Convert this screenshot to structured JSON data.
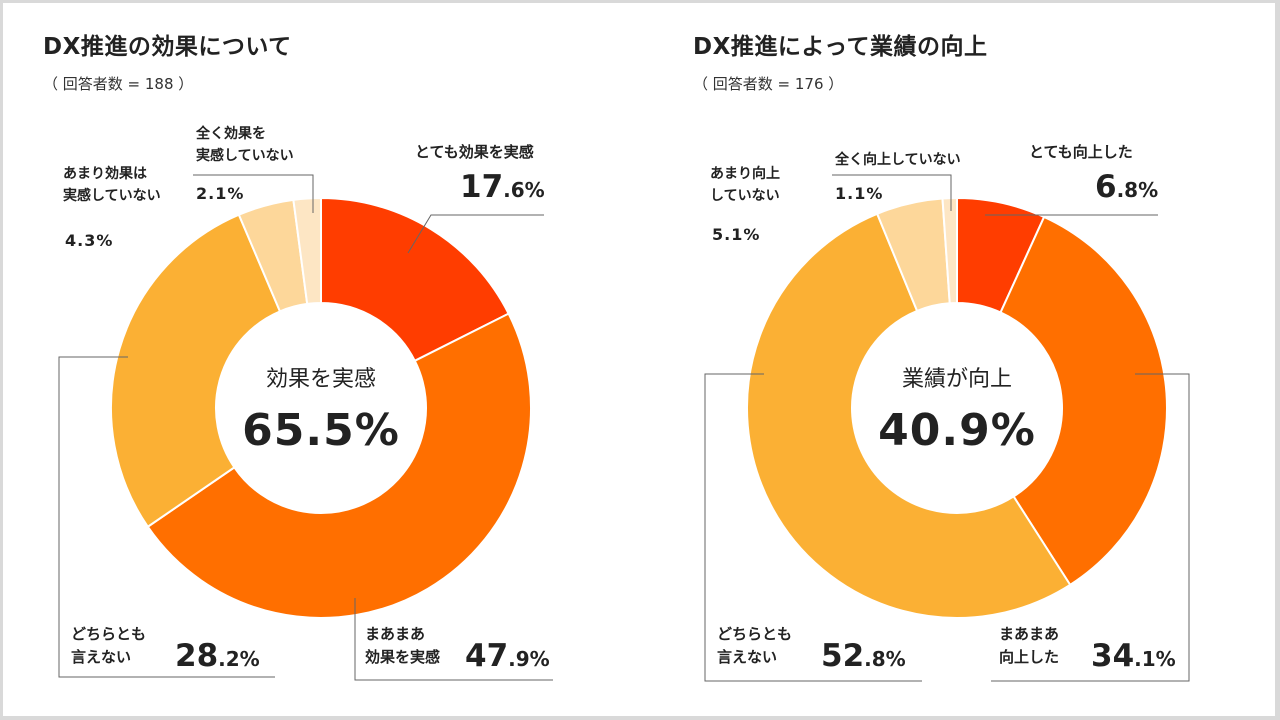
{
  "chart_data": [
    {
      "type": "pie",
      "title": "DX推進の効果について",
      "subtitle": "（ 回答者数 = 188 ）",
      "center_label": "効果を実感",
      "center_value": "65.5%",
      "categories": [
        "とても効果を実感",
        "まあまあ効果を実感",
        "どちらとも言えない",
        "あまり効果は実感していない",
        "全く効果を実感していない"
      ],
      "values": [
        17.6,
        47.9,
        28.2,
        4.3,
        2.1
      ],
      "colors": [
        "#ff3d00",
        "#ff6f00",
        "#fbb034",
        "#fdd79a",
        "#fde6c4"
      ],
      "labels": [
        {
          "line1": "とても効果を実感",
          "line2": "",
          "int": "17",
          "dec": ".6%"
        },
        {
          "line1": "まあまあ",
          "line2": "効果を実感",
          "int": "47",
          "dec": ".9%"
        },
        {
          "line1": "どちらとも",
          "line2": "言えない",
          "int": "28",
          "dec": ".2%"
        },
        {
          "line1": "あまり効果は",
          "line2": "実感していない",
          "value": "4.3%"
        },
        {
          "line1": "全く効果を",
          "line2": "実感していない",
          "value": "2.1%"
        }
      ]
    },
    {
      "type": "pie",
      "title": "DX推進によって業績の向上",
      "subtitle": "（ 回答者数 = 176 ）",
      "center_label": "業績が向上",
      "center_value": "40.9%",
      "categories": [
        "とても向上した",
        "まあまあ向上した",
        "どちらとも言えない",
        "あまり向上していない",
        "全く向上していない"
      ],
      "values": [
        6.8,
        34.1,
        52.8,
        5.1,
        1.1
      ],
      "colors": [
        "#ff3d00",
        "#ff6f00",
        "#fbb034",
        "#fdd79a",
        "#fde6c4"
      ],
      "labels": [
        {
          "line1": "とても向上した",
          "line2": "",
          "int": "6",
          "dec": ".8%"
        },
        {
          "line1": "まあまあ",
          "line2": "向上した",
          "int": "34",
          "dec": ".1%"
        },
        {
          "line1": "どちらとも",
          "line2": "言えない",
          "int": "52",
          "dec": ".8%"
        },
        {
          "line1": "あまり向上",
          "line2": "していない",
          "value": "5.1%"
        },
        {
          "line1": "全く向上していない",
          "line2": "",
          "value": "1.1%"
        }
      ]
    }
  ]
}
